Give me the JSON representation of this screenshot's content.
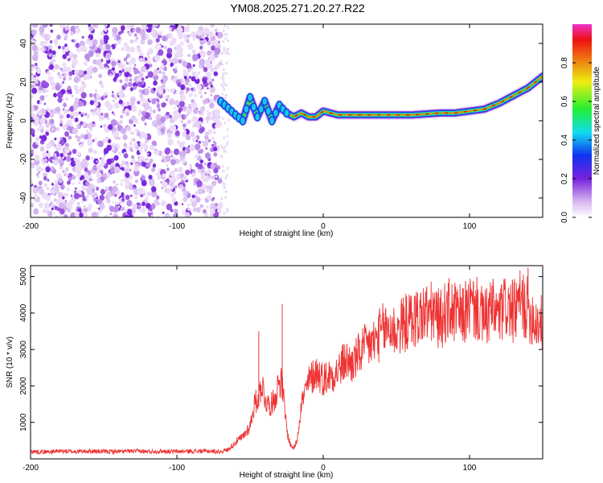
{
  "chart_data": [
    {
      "type": "heatmap",
      "title": "YM08.2025.271.20.27.R22",
      "xlabel": "Height of straight line (km)",
      "ylabel": "Frequency (Hz)",
      "xlim": [
        -200,
        150
      ],
      "ylim": [
        -50,
        50
      ],
      "xticks": [
        -200,
        -100,
        0,
        100
      ],
      "yticks": [
        -40,
        -20,
        0,
        20,
        40
      ],
      "noise_region": {
        "x_from": -200,
        "x_to": -70,
        "note": "broadband speckle"
      },
      "ridge": {
        "x": [
          -70,
          -60,
          -55,
          -50,
          -45,
          -40,
          -35,
          -30,
          -25,
          -20,
          -15,
          -10,
          -5,
          0,
          10,
          20,
          40,
          60,
          80,
          90,
          100,
          110,
          120,
          130,
          140,
          150
        ],
        "freq": [
          10,
          3,
          0,
          12,
          2,
          10,
          0,
          8,
          4,
          2,
          4,
          2,
          2,
          5,
          3,
          3,
          3,
          3,
          4,
          4,
          5,
          6,
          9,
          13,
          17,
          23
        ]
      },
      "colorbar": {
        "label": "Normalized spectral amplitude",
        "ticks": [
          0.0,
          0.2,
          0.4,
          0.6,
          0.8
        ],
        "range": [
          0,
          1
        ]
      }
    },
    {
      "type": "line",
      "xlabel": "Height of straight line (km)",
      "ylabel": "SNR (10 * v/v)",
      "xlim": [
        -200,
        150
      ],
      "ylim": [
        0,
        5300
      ],
      "xticks": [
        -200,
        -100,
        0,
        100
      ],
      "yticks": [
        1000,
        2000,
        3000,
        4000,
        5000
      ],
      "color": "#ee3333",
      "series": {
        "x": [
          -200,
          -190,
          -180,
          -170,
          -160,
          -150,
          -140,
          -130,
          -120,
          -110,
          -100,
          -90,
          -80,
          -70,
          -65,
          -60,
          -55,
          -50,
          -47,
          -44,
          -42,
          -40,
          -38,
          -35,
          -32,
          -30,
          -28,
          -26,
          -24,
          -22,
          -20,
          -18,
          -15,
          -10,
          -5,
          0,
          5,
          10,
          15,
          20,
          25,
          30,
          35,
          40,
          45,
          50,
          55,
          60,
          65,
          70,
          75,
          80,
          85,
          90,
          95,
          100,
          105,
          110,
          115,
          120,
          125,
          130,
          135,
          140,
          145,
          150
        ],
        "y": [
          200,
          190,
          210,
          200,
          210,
          200,
          200,
          210,
          200,
          210,
          200,
          210,
          210,
          200,
          250,
          450,
          600,
          900,
          1500,
          1700,
          2100,
          1700,
          1500,
          1500,
          1800,
          2200,
          2000,
          1200,
          600,
          350,
          300,
          500,
          1500,
          2100,
          2400,
          2200,
          2300,
          2400,
          2700,
          2600,
          2900,
          3100,
          3200,
          3500,
          3600,
          3500,
          3700,
          3800,
          3900,
          4000,
          4000,
          3800,
          4100,
          4000,
          3900,
          4200,
          4100,
          3800,
          4100,
          3900,
          4200,
          4000,
          4300,
          4100,
          3800,
          3700
        ]
      },
      "annotation_peaks": [
        {
          "x": -44,
          "y": 3500
        },
        {
          "x": -28,
          "y": 4250
        },
        {
          "x": 140,
          "y": 5250
        }
      ]
    }
  ]
}
